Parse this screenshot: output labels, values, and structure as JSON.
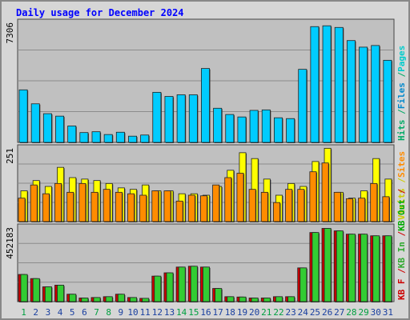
{
  "title": "Daily usage for December 2024",
  "colors": {
    "background": "#d6d6d6",
    "plot_bg": "#c0c0c0",
    "title": "#0000ff",
    "hits": "#00ccff",
    "files": "#00ccff",
    "pages": "#00ccff",
    "visits": "#ffff00",
    "sites": "#ff8c00",
    "kb_in": "#33cc33",
    "kb_out": "#00cc00",
    "kb_f": "#cc0000",
    "weekend_day": "#00a040",
    "weekday": "#1a40a0"
  },
  "chart_data": {
    "type": "bar",
    "title": "Daily usage for December 2024",
    "categories": [
      "1",
      "2",
      "3",
      "4",
      "5",
      "6",
      "7",
      "8",
      "9",
      "10",
      "11",
      "12",
      "13",
      "14",
      "15",
      "16",
      "17",
      "18",
      "19",
      "20",
      "21",
      "22",
      "23",
      "24",
      "25",
      "26",
      "27",
      "28",
      "29",
      "30",
      "31"
    ],
    "weekend_days": [
      1,
      7,
      8,
      14,
      15,
      21,
      22,
      28,
      29
    ],
    "panels": [
      {
        "name": "hits-files-pages",
        "ymax_label": "7306",
        "ymax": 7306,
        "legend": [
          {
            "text": "Hits",
            "color": "#00aa66"
          },
          {
            "text": "/",
            "color": "#00aa66"
          },
          {
            "text": "Files",
            "color": "#0088cc"
          },
          {
            "text": "/",
            "color": "#00aa66"
          },
          {
            "text": "Pages",
            "color": "#00cccc"
          }
        ],
        "series": [
          {
            "name": "Hits",
            "values": [
              3200,
              2350,
              1750,
              1600,
              1000,
              600,
              650,
              480,
              620,
              380,
              450,
              3050,
              2800,
              2900,
              2900,
              4500,
              2080,
              1700,
              1550,
              1950,
              1980,
              1500,
              1450,
              4450,
              7050,
              7100,
              7000,
              6200,
              5800,
              5900,
              5000
            ]
          },
          {
            "name": "Files",
            "values": [
              3200,
              2350,
              1750,
              1600,
              1000,
              600,
              650,
              480,
              620,
              380,
              450,
              3050,
              2800,
              2900,
              2900,
              4500,
              2080,
              1700,
              1550,
              1950,
              1980,
              1500,
              1450,
              4450,
              7050,
              7100,
              7000,
              6200,
              5800,
              5900,
              5000
            ]
          },
          {
            "name": "Pages",
            "values": [
              3200,
              2350,
              1750,
              1600,
              1000,
              600,
              650,
              480,
              620,
              380,
              450,
              3050,
              2800,
              2900,
              2900,
              4500,
              2080,
              1700,
              1550,
              1950,
              1980,
              1500,
              1450,
              4450,
              7050,
              7100,
              7000,
              6200,
              5800,
              5900,
              5000
            ]
          }
        ]
      },
      {
        "name": "visits-sites",
        "ymax_label": "251",
        "ymax": 251,
        "legend": [
          {
            "text": "Visits",
            "color": "#cccc00"
          },
          {
            "text": "/",
            "color": "#cccc00"
          },
          {
            "text": "Sites",
            "color": "#ff8c00"
          }
        ],
        "series": [
          {
            "name": "Visits",
            "values": [
              105,
              140,
              120,
              185,
              150,
              145,
              140,
              130,
              115,
              110,
              125,
              105,
              105,
              95,
              95,
              90,
              120,
              175,
              235,
              215,
              145,
              90,
              130,
              120,
              205,
              250,
              100,
              80,
              105,
              215,
              145
            ]
          },
          {
            "name": "Sites",
            "values": [
              80,
              125,
              95,
              130,
              100,
              130,
              100,
              110,
              100,
              95,
              90,
              105,
              105,
              70,
              90,
              88,
              125,
              150,
              165,
              110,
              100,
              65,
              110,
              110,
              170,
              200,
              100,
              78,
              80,
              130,
              85
            ]
          }
        ]
      },
      {
        "name": "kbin-kbout-kbf",
        "ymax_label": "452183",
        "ymax": 452183,
        "legend": [
          {
            "text": "KB F",
            "color": "#cc0000"
          },
          {
            "text": "/",
            "color": "#cc0000"
          },
          {
            "text": "KB In",
            "color": "#33aa33"
          },
          {
            "text": "/",
            "color": "#cc0000"
          },
          {
            "text": "KB Out",
            "color": "#00aa00"
          },
          {
            "text": "/",
            "color": "#cc0000"
          }
        ],
        "series": [
          {
            "name": "KB F",
            "values": [
              165000,
              140000,
              90000,
              100000,
              45000,
              22000,
              25000,
              30000,
              45000,
              25000,
              20000,
              155000,
              175000,
              210000,
              215000,
              210000,
              80000,
              30000,
              28000,
              22000,
              22000,
              30000,
              30000,
              205000,
              420000,
              445000,
              430000,
              410000,
              410000,
              400000,
              400000
            ]
          },
          {
            "name": "KB In",
            "values": [
              165000,
              140000,
              90000,
              100000,
              45000,
              22000,
              25000,
              30000,
              45000,
              25000,
              20000,
              155000,
              175000,
              210000,
              215000,
              210000,
              80000,
              30000,
              28000,
              22000,
              22000,
              30000,
              30000,
              205000,
              420000,
              445000,
              430000,
              410000,
              410000,
              400000,
              400000
            ]
          }
        ]
      }
    ]
  }
}
